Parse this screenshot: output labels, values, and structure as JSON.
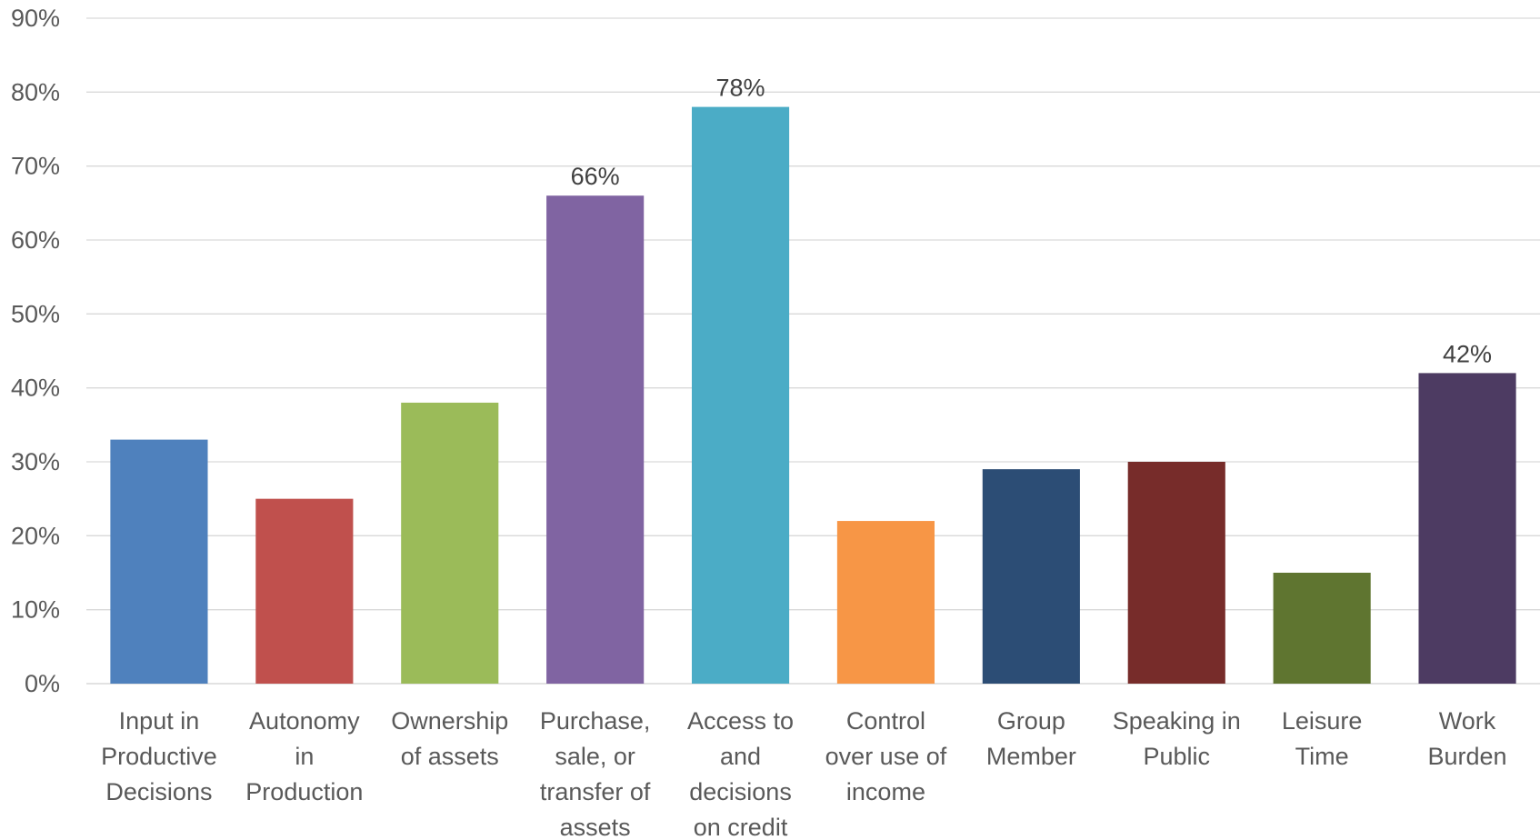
{
  "chart_data": {
    "type": "bar",
    "categories": [
      [
        "Input in",
        "Productive",
        "Decisions"
      ],
      [
        "Autonomy",
        "in",
        "Production"
      ],
      [
        "Ownership",
        "of assets"
      ],
      [
        "Purchase,",
        "sale, or",
        "transfer of",
        "assets"
      ],
      [
        "Access to",
        "and",
        "decisions",
        "on credit"
      ],
      [
        "Control",
        "over use of",
        "income"
      ],
      [
        "Group",
        "Member"
      ],
      [
        "Speaking in",
        "Public"
      ],
      [
        "Leisure",
        "Time"
      ],
      [
        "Work",
        "Burden"
      ]
    ],
    "values": [
      33,
      25,
      38,
      66,
      78,
      22,
      29,
      30,
      15,
      42
    ],
    "data_labels": [
      "",
      "",
      "",
      "66%",
      "78%",
      "",
      "",
      "",
      "",
      "42%"
    ],
    "colors": [
      "#4f81bd",
      "#c0504d",
      "#9bbb59",
      "#8064a2",
      "#4bacc6",
      "#f79646",
      "#2c4d75",
      "#772c2a",
      "#5f7530",
      "#4d3b62"
    ],
    "ylim": [
      0,
      90
    ],
    "yticks": [
      0,
      10,
      20,
      30,
      40,
      50,
      60,
      70,
      80,
      90
    ],
    "ytick_labels": [
      "0%",
      "10%",
      "20%",
      "30%",
      "40%",
      "50%",
      "60%",
      "70%",
      "80%",
      "90%"
    ],
    "grid": true,
    "title": "",
    "xlabel": "",
    "ylabel": ""
  }
}
